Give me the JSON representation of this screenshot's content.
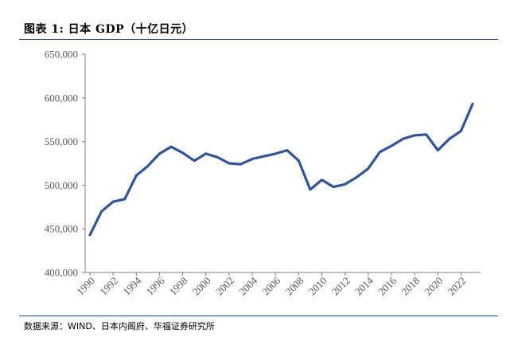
{
  "header": {
    "title": "图表 1:  日本 GDP（十亿日元）"
  },
  "footer": {
    "source": "数据来源：WIND、日本内阁府、华福证券研究所"
  },
  "colors": {
    "line": "#2f5597",
    "rule": "#1f4e96",
    "axis": "#7f7f7f"
  },
  "chart_data": {
    "type": "line",
    "title": "日本 GDP（十亿日元）",
    "xlabel": "",
    "ylabel": "",
    "ylim": [
      400000,
      650000
    ],
    "yticks": [
      "400,000",
      "450,000",
      "500,000",
      "550,000",
      "600,000",
      "650,000"
    ],
    "ytick_values": [
      400000,
      450000,
      500000,
      550000,
      600000,
      650000
    ],
    "xticks": [
      "1990",
      "1992",
      "1994",
      "1996",
      "1998",
      "2000",
      "2002",
      "2004",
      "2006",
      "2008",
      "2010",
      "2012",
      "2014",
      "2016",
      "2018",
      "2020",
      "2022"
    ],
    "x": [
      1990,
      1991,
      1992,
      1993,
      1994,
      1995,
      1996,
      1997,
      1998,
      1999,
      2000,
      2001,
      2002,
      2003,
      2004,
      2005,
      2006,
      2007,
      2008,
      2009,
      2010,
      2011,
      2012,
      2013,
      2014,
      2015,
      2016,
      2017,
      2018,
      2019,
      2020,
      2021,
      2022,
      2023
    ],
    "series": [
      {
        "values": [
          443000,
          470000,
          481000,
          484000,
          511000,
          522000,
          536000,
          544000,
          537000,
          528000,
          536000,
          532000,
          525000,
          524000,
          530000,
          533000,
          536000,
          540000,
          528000,
          495000,
          506000,
          498000,
          501000,
          509000,
          519000,
          538000,
          545000,
          553000,
          557000,
          558000,
          540000,
          553000,
          562000,
          593000
        ]
      }
    ],
    "grid": false,
    "legend": "none"
  }
}
